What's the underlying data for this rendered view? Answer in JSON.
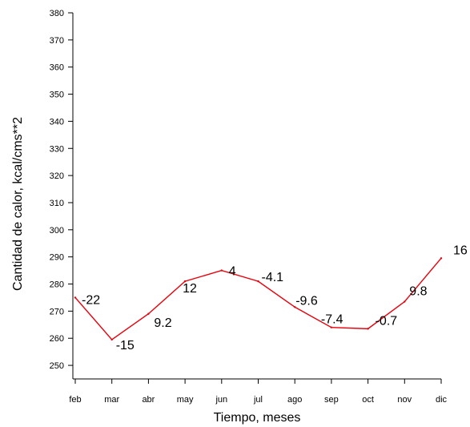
{
  "chart_data": {
    "type": "line",
    "xlabel": "Tiempo, meses",
    "ylabel": "Cantidad de calor, kcal/cms**2",
    "categories": [
      "feb",
      "mar",
      "abr",
      "may",
      "jun",
      "jul",
      "ago",
      "sep",
      "oct",
      "nov",
      "dic"
    ],
    "ylim": [
      245,
      380
    ],
    "yticks": [
      250,
      260,
      270,
      280,
      290,
      300,
      310,
      320,
      330,
      340,
      350,
      360,
      370,
      380
    ],
    "grid": false,
    "series": [
      {
        "values": [
          275,
          259.5,
          269,
          281,
          285,
          281,
          271.5,
          264,
          263.5,
          273.5,
          289.5
        ],
        "data_labels": [
          "-22",
          "-15",
          "9.2",
          "12",
          "4",
          "-4.1",
          "-9.6",
          "-7.4",
          "-0.7",
          "9.8",
          "16"
        ],
        "color": "#e8000b"
      }
    ]
  }
}
